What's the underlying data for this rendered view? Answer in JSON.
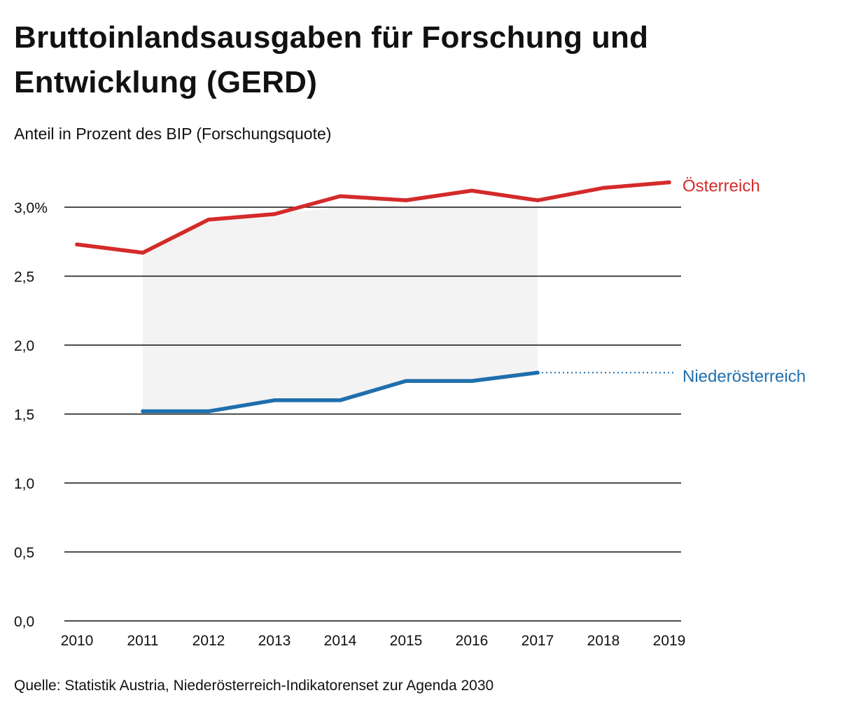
{
  "title": "Bruttoinlandsausgaben für Forschung und Entwicklung (GERD)",
  "subtitle": "Anteil in Prozent des BIP (Forschungsquote)",
  "source": "Quelle: Statistik Austria, Niederösterreich-Indikatorenset zur Agenda 2030",
  "colors": {
    "oesterreich": "#d42a2a",
    "niederoesterreich": "#1f6fad",
    "band": "#f3f3f3",
    "grid": "#111111"
  },
  "chart_data": {
    "type": "line",
    "title": "Bruttoinlandsausgaben für Forschung und Entwicklung (GERD)",
    "ylabel": "Anteil in Prozent des BIP (Forschungsquote)",
    "xlabel": "",
    "x": [
      2010,
      2011,
      2012,
      2013,
      2014,
      2015,
      2016,
      2017,
      2018,
      2019
    ],
    "x_tick_labels": [
      "2010",
      "2011",
      "2012",
      "2013",
      "2014",
      "2015",
      "2016",
      "2017",
      "2018",
      "2019"
    ],
    "ylim": [
      0,
      3.0
    ],
    "y_ticks": [
      0,
      0.5,
      1.0,
      1.5,
      2.0,
      2.5,
      3.0
    ],
    "y_tick_labels": [
      "0,0",
      "0,5",
      "1,0",
      "1,5",
      "2,0",
      "2,5",
      "3,0%"
    ],
    "grid": true,
    "series": [
      {
        "name": "Österreich",
        "key": "oesterreich",
        "x": [
          2010,
          2011,
          2012,
          2013,
          2014,
          2015,
          2016,
          2017,
          2018,
          2019
        ],
        "values": [
          2.73,
          2.67,
          2.91,
          2.95,
          3.08,
          3.05,
          3.12,
          3.05,
          3.14,
          3.18
        ]
      },
      {
        "name": "Niederösterreich",
        "key": "niederoesterreich",
        "x": [
          2011,
          2012,
          2013,
          2014,
          2015,
          2016,
          2017
        ],
        "values": [
          1.52,
          1.52,
          1.6,
          1.6,
          1.74,
          1.74,
          1.8
        ]
      }
    ],
    "annotations": [
      "Shaded band between the series from 2011 to 2017",
      "Dotted continuation of Niederösterreich 2017 value to its label"
    ]
  }
}
